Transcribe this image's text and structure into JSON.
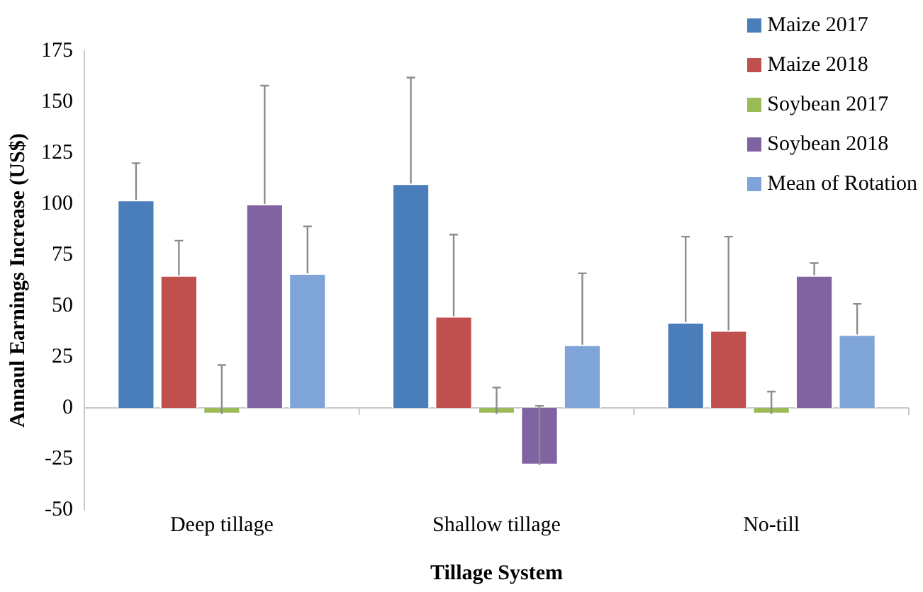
{
  "chart_data": {
    "type": "bar",
    "xlabel": "Tillage System",
    "ylabel": "Annaul Earnings Increase (US$)",
    "categories": [
      "Deep tillage",
      "Shallow tillage",
      "No-till"
    ],
    "series": [
      {
        "name": "Maize 2017",
        "color": "#4a7ebb",
        "values": [
          102,
          110,
          42
        ],
        "errors": [
          [
            102,
            120
          ],
          [
            110,
            162
          ],
          [
            42,
            84
          ]
        ]
      },
      {
        "name": "Maize 2018",
        "color": "#c0504d",
        "values": [
          65,
          45,
          38
        ],
        "errors": [
          [
            65,
            82
          ],
          [
            45,
            85
          ],
          [
            38,
            84
          ]
        ]
      },
      {
        "name": "Soybean 2017",
        "color": "#9bbb59",
        "values": [
          -3,
          -3,
          -3
        ],
        "errors": [
          [
            -3,
            21
          ],
          [
            -3,
            10
          ],
          [
            -3,
            8
          ]
        ]
      },
      {
        "name": "Soybean 2018",
        "color": "#8064a2",
        "values": [
          100,
          -28,
          65
        ],
        "errors": [
          [
            100,
            158
          ],
          [
            -28,
            1
          ],
          [
            65,
            71
          ]
        ]
      },
      {
        "name": "Mean of Rotation",
        "color": "#7fa5d8",
        "values": [
          66,
          31,
          36
        ],
        "errors": [
          [
            66,
            89
          ],
          [
            31,
            66
          ],
          [
            36,
            51
          ]
        ]
      }
    ],
    "ylim": [
      -50,
      175
    ],
    "yticks": [
      -50,
      -25,
      0,
      25,
      50,
      75,
      100,
      125,
      150,
      175
    ],
    "legend": "top right"
  }
}
